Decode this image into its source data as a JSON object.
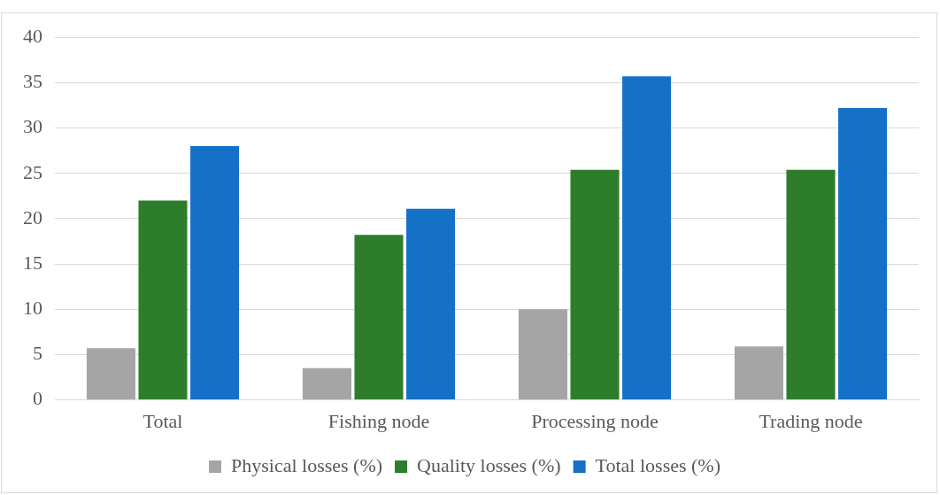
{
  "chart_data": {
    "type": "bar",
    "categories": [
      "Total",
      "Fishing node",
      "Processing node",
      "Trading node"
    ],
    "series": [
      {
        "name": "Physical losses (%)",
        "color": "#a5a5a5",
        "values": [
          5.7,
          3.5,
          10.0,
          5.9
        ]
      },
      {
        "name": "Quality losses (%)",
        "color": "#2e7d2a",
        "values": [
          22.0,
          18.2,
          25.4,
          25.4
        ]
      },
      {
        "name": "Total losses (%)",
        "color": "#1570c8",
        "values": [
          28.0,
          21.1,
          35.7,
          32.2
        ]
      }
    ],
    "ylim": [
      0,
      40
    ],
    "yticks": [
      0,
      5,
      10,
      15,
      20,
      25,
      30,
      35,
      40
    ],
    "grid": "y",
    "legend": "bottom"
  }
}
